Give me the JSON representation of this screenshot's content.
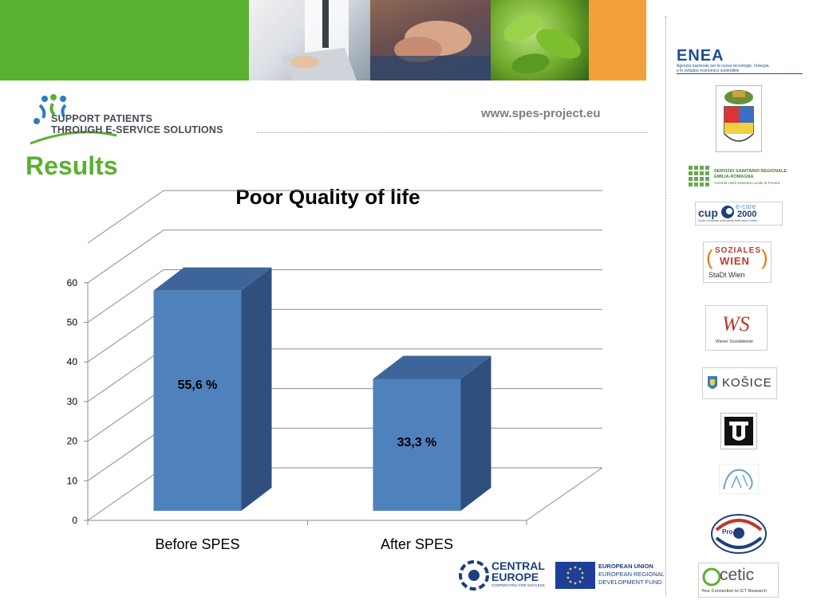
{
  "header": {
    "website": "www.spes-project.eu",
    "logo_line1": "SUPPORT PATIENTS",
    "logo_line2": "THROUGH E-SERVICE SOLUTIONS"
  },
  "slide": {
    "heading": "Results"
  },
  "chart_data": {
    "type": "bar",
    "title": "Poor Quality of life",
    "categories": [
      "Before SPES",
      "After SPES"
    ],
    "values": [
      55.6,
      33.3
    ],
    "data_labels": [
      "55,6 %",
      "33,3 %"
    ],
    "y_ticks": [
      "0",
      "10",
      "20",
      "30",
      "40",
      "50",
      "60"
    ],
    "ylim": [
      0,
      70
    ],
    "grid": true,
    "bar_color": "#4f81bd",
    "bar_side_color": "#2f4f7f",
    "bar_top_color": "#3d6599"
  },
  "partners": {
    "enea_name": "ENEA",
    "enea_sub1": "Agenzia nazionale per le nuove tecnologie, l'energia",
    "enea_sub2": "e lo sviluppo economico sostenibile",
    "emilia_line1": "SERVIZIO SANITARIO REGIONALE",
    "emilia_line2": "EMILIA-ROMAGNA",
    "emilia_line3": "Azienda Unità Sanitaria Locale di Ferrara",
    "cup_main": "cup",
    "cup_ecare": "e-care",
    "cup_year": "2000",
    "cup_sub": "il polo industriale della sanità elettronica in Italia",
    "fsw_line1": "SOZIALES",
    "fsw_line2": "WIEN",
    "fsw_line3": "StaDt Wien",
    "ws_mark": "WS",
    "ws_sub": "Wiener Sozialdienste",
    "kosice": "KOŠICE",
    "tu_mark": "TU",
    "proeco_text": "Pro",
    "ocetic_name": "cetic",
    "ocetic_sub": "Your Connection to ICT Research"
  },
  "footer": {
    "central1": "CENTRAL",
    "central2": "EUROPE",
    "central_sub": "COOPERATING FOR SUCCESS.",
    "eu1": "EUROPEAN UNION",
    "eu2": "EUROPEAN REGIONAL",
    "eu3": "DEVELOPMENT FUND"
  }
}
